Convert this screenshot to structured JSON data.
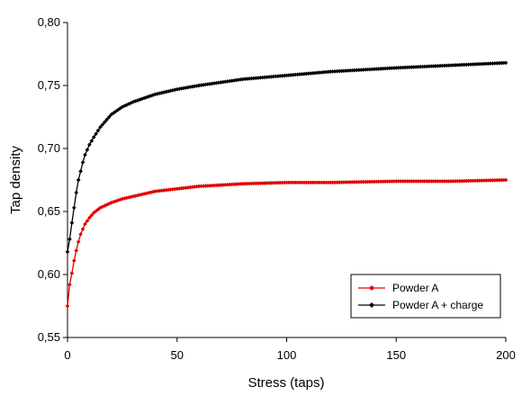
{
  "chart_data": {
    "type": "line",
    "xlabel": "Stress (taps)",
    "ylabel": "Tap density",
    "xlim": [
      0,
      200
    ],
    "ylim": [
      0.55,
      0.8
    ],
    "x_ticks": [
      0,
      50,
      100,
      150,
      200
    ],
    "x_tick_labels": [
      "0",
      "50",
      "100",
      "150",
      "200"
    ],
    "y_ticks": [
      0.55,
      0.6,
      0.65,
      0.7,
      0.75,
      0.8
    ],
    "y_tick_labels": [
      "0,55",
      "0,60",
      "0,65",
      "0,70",
      "0,75",
      "0,80"
    ],
    "grid": false,
    "legend_position": "bottom-right",
    "series": [
      {
        "name": "Powder A",
        "color": "#e00000",
        "marker": "diamond",
        "x": [
          0,
          1,
          2,
          3,
          4,
          5,
          6,
          7,
          8,
          10,
          12,
          15,
          20,
          25,
          30,
          40,
          50,
          60,
          80,
          100,
          120,
          150,
          175,
          200
        ],
        "y": [
          0.575,
          0.592,
          0.601,
          0.611,
          0.619,
          0.626,
          0.632,
          0.636,
          0.64,
          0.645,
          0.649,
          0.653,
          0.657,
          0.66,
          0.662,
          0.666,
          0.668,
          0.67,
          0.672,
          0.673,
          0.673,
          0.674,
          0.674,
          0.675
        ]
      },
      {
        "name": "Powder A + charge",
        "color": "#000000",
        "marker": "diamond",
        "x": [
          0,
          1,
          2,
          3,
          4,
          5,
          6,
          7,
          8,
          10,
          12,
          15,
          20,
          25,
          30,
          40,
          50,
          60,
          80,
          100,
          120,
          150,
          175,
          200
        ],
        "y": [
          0.618,
          0.628,
          0.641,
          0.653,
          0.665,
          0.675,
          0.682,
          0.689,
          0.695,
          0.703,
          0.709,
          0.717,
          0.727,
          0.733,
          0.737,
          0.743,
          0.747,
          0.75,
          0.755,
          0.758,
          0.761,
          0.764,
          0.766,
          0.768
        ]
      }
    ]
  }
}
